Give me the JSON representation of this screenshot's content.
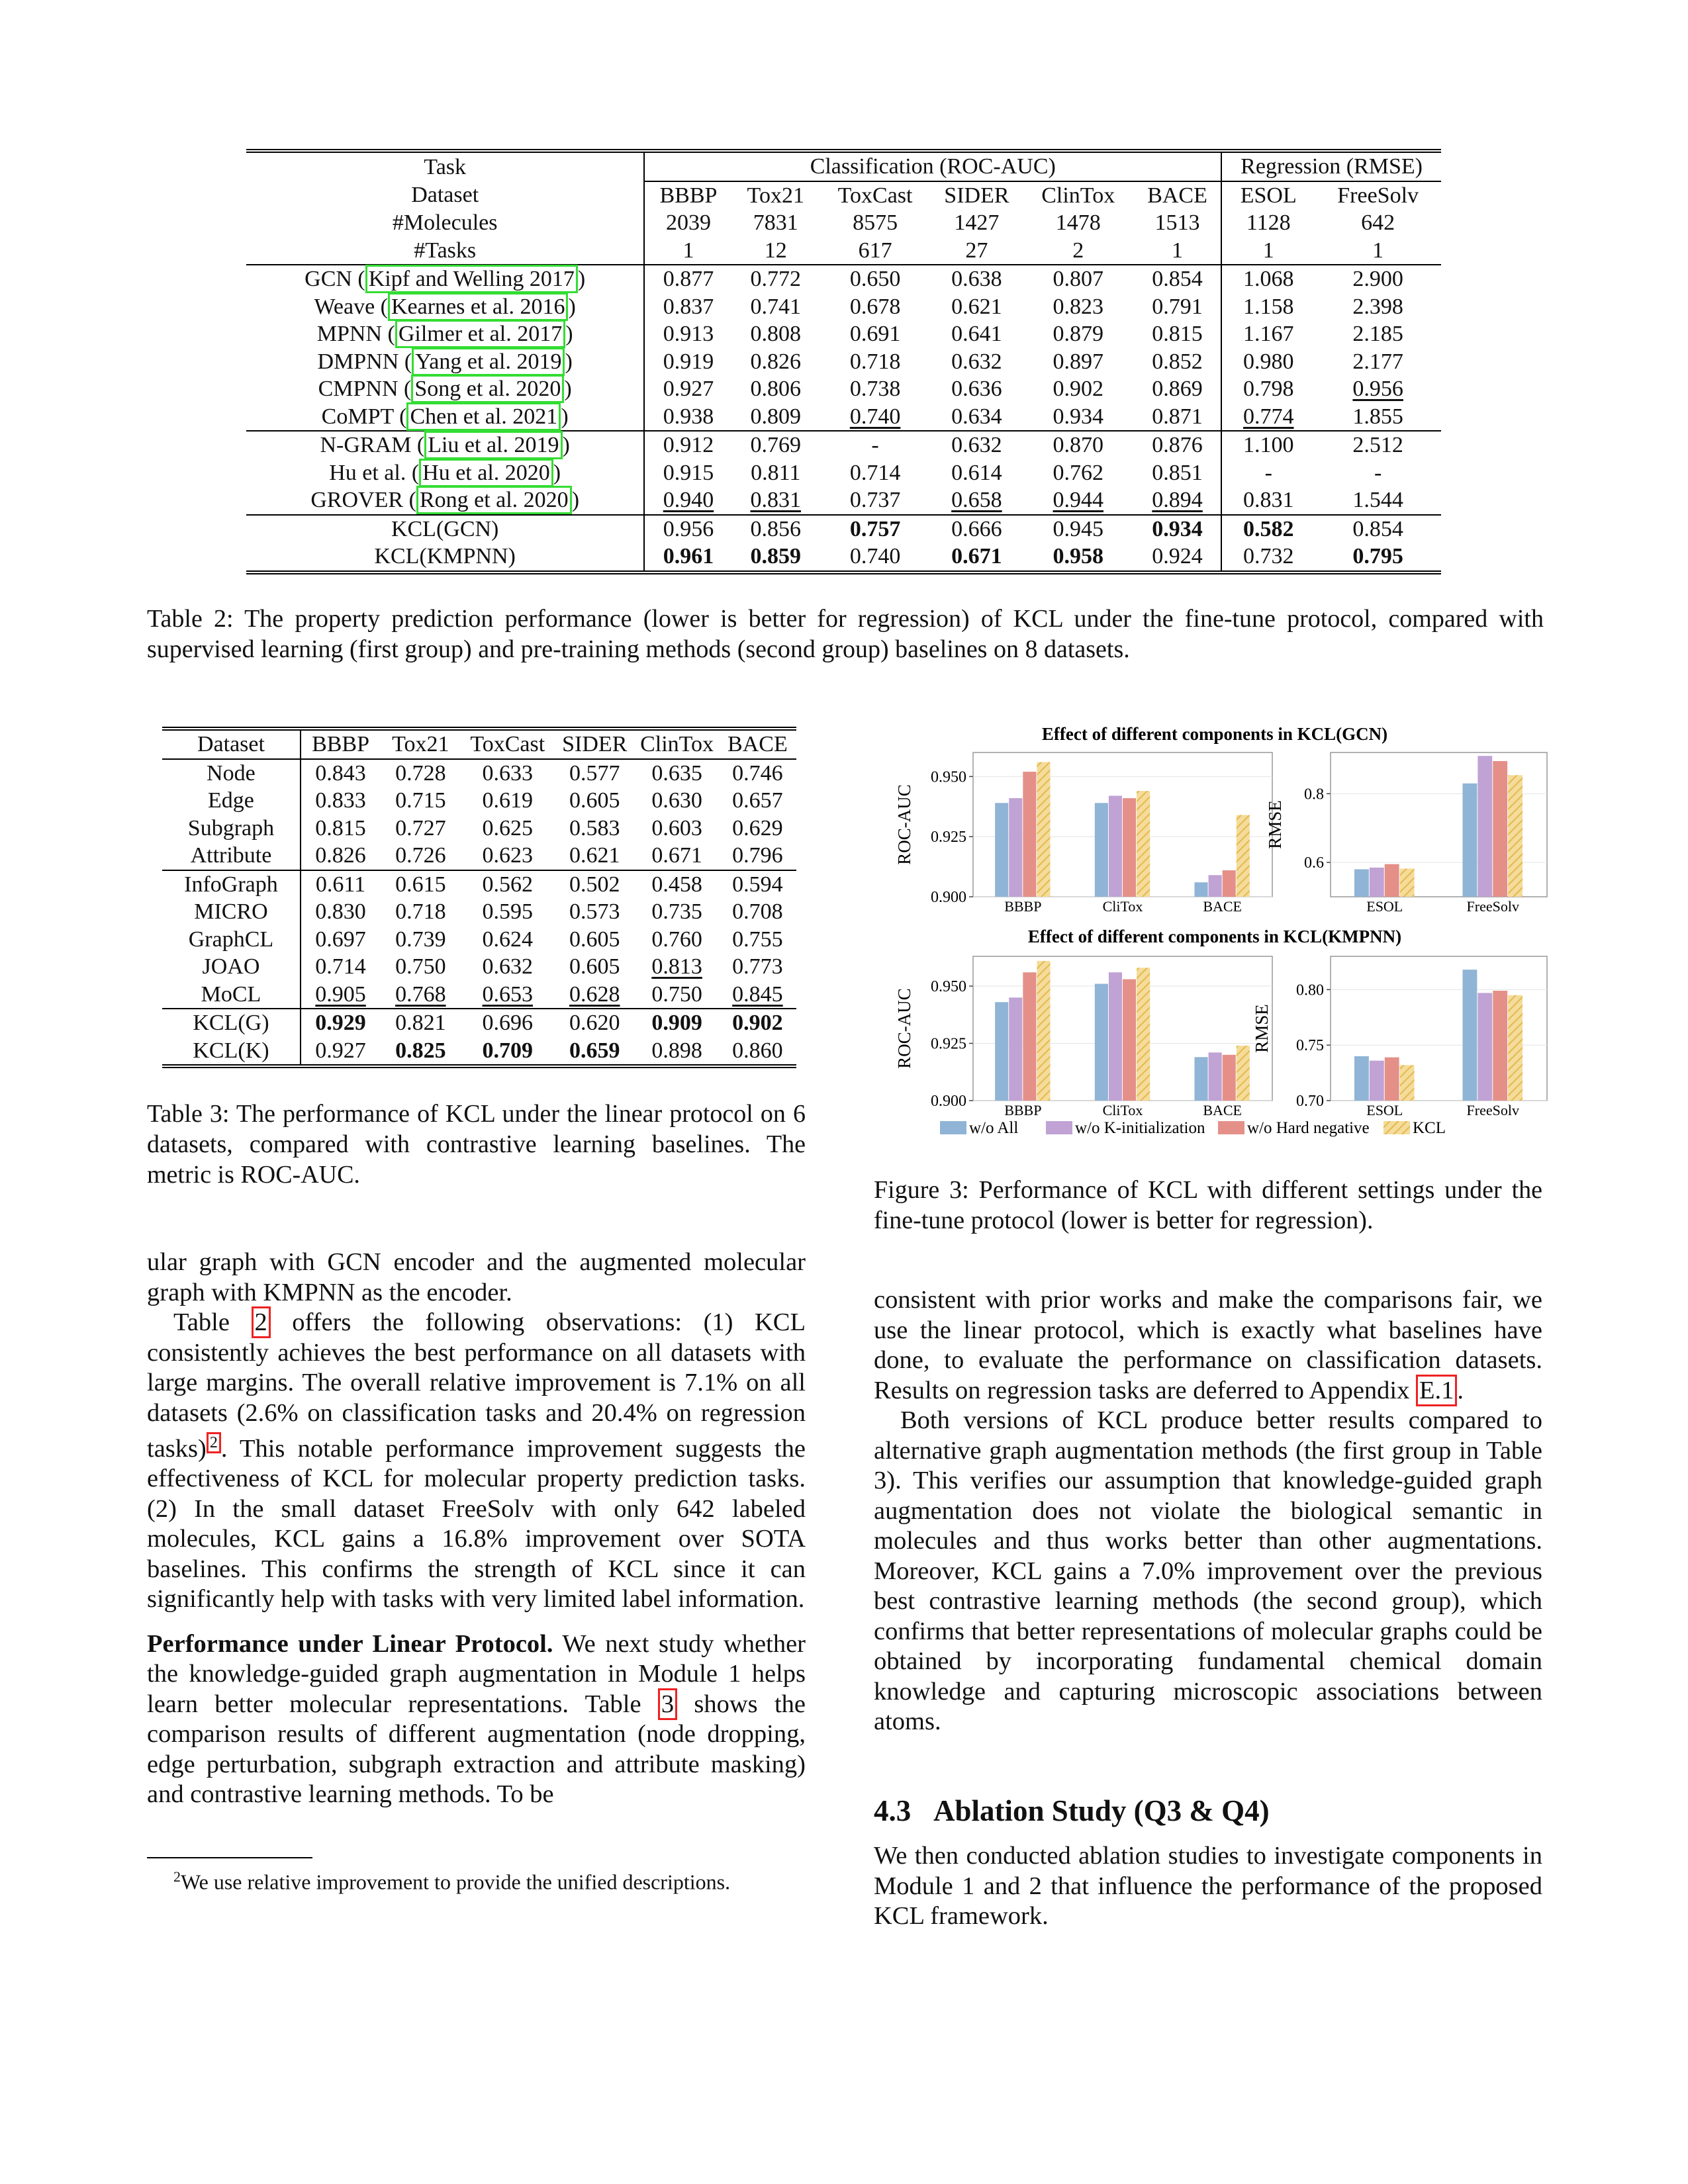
{
  "table2": {
    "header": {
      "task": "Task",
      "classification": "Classification (ROC-AUC)",
      "regression": "Regression (RMSE)",
      "dataset_label": "Dataset",
      "molecules_label": "#Molecules",
      "tasks_label": "#Tasks",
      "datasets": [
        "BBBP",
        "Tox21",
        "ToxCast",
        "SIDER",
        "ClinTox",
        "BACE",
        "ESOL",
        "FreeSolv"
      ],
      "molecules": [
        "2039",
        "7831",
        "8575",
        "1427",
        "1478",
        "1513",
        "1128",
        "642"
      ],
      "tasks": [
        "1",
        "12",
        "617",
        "27",
        "2",
        "1",
        "1",
        "1"
      ]
    },
    "group1": [
      {
        "name": "GCN",
        "cite_author": "Kipf and Welling",
        "cite_year": "2017",
        "vals": [
          "0.877",
          "0.772",
          "0.650",
          "0.638",
          "0.807",
          "0.854",
          "1.068",
          "2.900"
        ]
      },
      {
        "name": "Weave",
        "cite_author": "Kearnes et al.",
        "cite_year": "2016",
        "vals": [
          "0.837",
          "0.741",
          "0.678",
          "0.621",
          "0.823",
          "0.791",
          "1.158",
          "2.398"
        ]
      },
      {
        "name": "MPNN",
        "cite_author": "Gilmer et al.",
        "cite_year": "2017",
        "vals": [
          "0.913",
          "0.808",
          "0.691",
          "0.641",
          "0.879",
          "0.815",
          "1.167",
          "2.185"
        ]
      },
      {
        "name": "DMPNN",
        "cite_author": "Yang et al.",
        "cite_year": "2019",
        "vals": [
          "0.919",
          "0.826",
          "0.718",
          "0.632",
          "0.897",
          "0.852",
          "0.980",
          "2.177"
        ]
      },
      {
        "name": "CMPNN",
        "cite_author": "Song et al.",
        "cite_year": "2020",
        "vals": [
          "0.927",
          "0.806",
          "0.738",
          "0.636",
          "0.902",
          "0.869",
          "0.798",
          "0.956"
        ]
      },
      {
        "name": "CoMPT",
        "cite_author": "Chen et al.",
        "cite_year": "2021",
        "vals": [
          "0.938",
          "0.809",
          "0.740",
          "0.634",
          "0.934",
          "0.871",
          "0.774",
          "1.855"
        ]
      }
    ],
    "group2": [
      {
        "name": "N-GRAM",
        "cite_author": "Liu et al.",
        "cite_year": "2019",
        "vals": [
          "0.912",
          "0.769",
          "-",
          "0.632",
          "0.870",
          "0.876",
          "1.100",
          "2.512"
        ]
      },
      {
        "name": "Hu et al.",
        "cite_author": "Hu et al.",
        "cite_year": "2020",
        "vals": [
          "0.915",
          "0.811",
          "0.714",
          "0.614",
          "0.762",
          "0.851",
          "-",
          "-"
        ]
      },
      {
        "name": "GROVER",
        "cite_author": "Rong et al.",
        "cite_year": "2020",
        "vals": [
          "0.940",
          "0.831",
          "0.737",
          "0.658",
          "0.944",
          "0.894",
          "0.831",
          "1.544"
        ]
      }
    ],
    "group3": [
      {
        "name": "KCL(GCN)",
        "vals": [
          "0.956",
          "0.856",
          "0.757",
          "0.666",
          "0.945",
          "0.934",
          "0.582",
          "0.854"
        ]
      },
      {
        "name": "KCL(KMPNN)",
        "vals": [
          "0.961",
          "0.859",
          "0.740",
          "0.671",
          "0.958",
          "0.924",
          "0.732",
          "0.795"
        ]
      }
    ],
    "caption": "Table 2: The property prediction performance (lower is better for regression) of KCL under the fine-tune protocol, compared with supervised learning (first group) and pre-training methods (second group) baselines on 8 datasets."
  },
  "table3": {
    "header": [
      "Dataset",
      "BBBP",
      "Tox21",
      "ToxCast",
      "SIDER",
      "ClinTox",
      "BACE"
    ],
    "group1": [
      {
        "name": "Node",
        "vals": [
          "0.843",
          "0.728",
          "0.633",
          "0.577",
          "0.635",
          "0.746"
        ]
      },
      {
        "name": "Edge",
        "vals": [
          "0.833",
          "0.715",
          "0.619",
          "0.605",
          "0.630",
          "0.657"
        ]
      },
      {
        "name": "Subgraph",
        "vals": [
          "0.815",
          "0.727",
          "0.625",
          "0.583",
          "0.603",
          "0.629"
        ]
      },
      {
        "name": "Attribute",
        "vals": [
          "0.826",
          "0.726",
          "0.623",
          "0.621",
          "0.671",
          "0.796"
        ]
      }
    ],
    "group2": [
      {
        "name": "InfoGraph",
        "vals": [
          "0.611",
          "0.615",
          "0.562",
          "0.502",
          "0.458",
          "0.594"
        ]
      },
      {
        "name": "MICRO",
        "vals": [
          "0.830",
          "0.718",
          "0.595",
          "0.573",
          "0.735",
          "0.708"
        ]
      },
      {
        "name": "GraphCL",
        "vals": [
          "0.697",
          "0.739",
          "0.624",
          "0.605",
          "0.760",
          "0.755"
        ]
      },
      {
        "name": "JOAO",
        "vals": [
          "0.714",
          "0.750",
          "0.632",
          "0.605",
          "0.813",
          "0.773"
        ]
      },
      {
        "name": "MoCL",
        "vals": [
          "0.905",
          "0.768",
          "0.653",
          "0.628",
          "0.750",
          "0.845"
        ]
      }
    ],
    "group3": [
      {
        "name": "KCL(G)",
        "vals": [
          "0.929",
          "0.821",
          "0.696",
          "0.620",
          "0.909",
          "0.902"
        ]
      },
      {
        "name": "KCL(K)",
        "vals": [
          "0.927",
          "0.825",
          "0.709",
          "0.659",
          "0.898",
          "0.860"
        ]
      }
    ],
    "caption": "Table 3: The performance of KCL under the linear protocol on 6 datasets, compared with contrastive learning baselines. The metric is ROC-AUC."
  },
  "figure3": {
    "title_gcn": "Effect of different components in KCL(GCN)",
    "title_kmpnn": "Effect of different components in KCL(KMPNN)",
    "caption": "Figure 3: Performance of KCL with different settings under the fine-tune protocol (lower is better for regression).",
    "legend": [
      "w/o All",
      "w/o K-initialization",
      "w/o Hard negative",
      "KCL"
    ]
  },
  "chart_data": [
    {
      "type": "bar",
      "title": "Effect of different components in KCL(GCN)",
      "ylabel": "ROC-AUC",
      "ylim": [
        0.9,
        0.96
      ],
      "yticks": [
        "0.900",
        "0.925",
        "0.950"
      ],
      "categories": [
        "BBBP",
        "CliTox",
        "BACE"
      ],
      "series": [
        {
          "name": "w/o All",
          "values": [
            0.939,
            0.939,
            0.906
          ]
        },
        {
          "name": "w/o K-initialization",
          "values": [
            0.941,
            0.942,
            0.909
          ]
        },
        {
          "name": "w/o Hard negative",
          "values": [
            0.952,
            0.941,
            0.911
          ]
        },
        {
          "name": "KCL",
          "values": [
            0.956,
            0.944,
            0.934
          ]
        }
      ],
      "colors": [
        "#8fb4d6",
        "#c0a2d4",
        "#e49088",
        "#f0cf7a"
      ]
    },
    {
      "type": "bar",
      "ylabel": "RMSE",
      "ylim": [
        0.5,
        0.92
      ],
      "yticks": [
        "0.6",
        "0.8"
      ],
      "categories": [
        "ESOL",
        "FreeSolv"
      ],
      "series": [
        {
          "name": "w/o All",
          "values": [
            0.58,
            0.83
          ]
        },
        {
          "name": "w/o K-initialization",
          "values": [
            0.585,
            0.91
          ]
        },
        {
          "name": "w/o Hard negative",
          "values": [
            0.595,
            0.895
          ]
        },
        {
          "name": "KCL",
          "values": [
            0.582,
            0.854
          ]
        }
      ],
      "colors": [
        "#8fb4d6",
        "#c0a2d4",
        "#e49088",
        "#f0cf7a"
      ]
    },
    {
      "type": "bar",
      "title": "Effect of different components in KCL(KMPNN)",
      "ylabel": "ROC-AUC",
      "ylim": [
        0.9,
        0.963
      ],
      "yticks": [
        "0.900",
        "0.925",
        "0.950"
      ],
      "categories": [
        "BBBP",
        "CliTox",
        "BACE"
      ],
      "series": [
        {
          "name": "w/o All",
          "values": [
            0.943,
            0.951,
            0.919
          ]
        },
        {
          "name": "w/o K-initialization",
          "values": [
            0.945,
            0.956,
            0.921
          ]
        },
        {
          "name": "w/o Hard negative",
          "values": [
            0.956,
            0.953,
            0.92
          ]
        },
        {
          "name": "KCL",
          "values": [
            0.961,
            0.958,
            0.924
          ]
        }
      ],
      "colors": [
        "#8fb4d6",
        "#c0a2d4",
        "#e49088",
        "#f0cf7a"
      ]
    },
    {
      "type": "bar",
      "ylabel": "RMSE",
      "ylim": [
        0.7,
        0.83
      ],
      "yticks": [
        "0.70",
        "0.75",
        "0.80"
      ],
      "categories": [
        "ESOL",
        "FreeSolv"
      ],
      "series": [
        {
          "name": "w/o All",
          "values": [
            0.74,
            0.818
          ]
        },
        {
          "name": "w/o K-initialization",
          "values": [
            0.736,
            0.797
          ]
        },
        {
          "name": "w/o Hard negative",
          "values": [
            0.739,
            0.799
          ]
        },
        {
          "name": "KCL",
          "values": [
            0.732,
            0.795
          ]
        }
      ],
      "colors": [
        "#8fb4d6",
        "#c0a2d4",
        "#e49088",
        "#f0cf7a"
      ]
    }
  ],
  "left_col": {
    "p1": "ular graph with GCN encoder and the augmented molecular graph with KMPNN as the encoder.",
    "p2_pre": "Table ",
    "p2_ref": "2",
    "p2_a": " offers the following observations: (1) KCL consistently achieves the best performance on all datasets with large margins. The overall relative improvement is 7.1% on all datasets (2.6% on classification tasks and 20.4% on regression tasks)",
    "p2_fn": "2",
    "p2_b": ". This notable performance improvement suggests the effectiveness of KCL for molecular property prediction tasks. (2) In the small dataset FreeSolv with only 642 labeled molecules, KCL gains a 16.8% improvement over SOTA baselines. This confirms the strength of KCL since it can significantly help with tasks with very limited label information.",
    "p3_head": "Performance under Linear Protocol.",
    "p3_a": " We next study whether the knowledge-guided graph augmentation in Module 1 helps learn better molecular representations. Table ",
    "p3_ref": "3",
    "p3_b": " shows the comparison results of different augmentation (node dropping, edge perturbation, subgraph extraction and attribute masking) and contrastive learning methods. To be",
    "footnote_num": "2",
    "footnote": "We use relative improvement to provide the unified descriptions."
  },
  "right_col": {
    "p1_a": "consistent with prior works and make the comparisons fair, we use the linear protocol, which is exactly what baselines have done, to evaluate the performance on classification datasets. Results on regression tasks are deferred to Appendix ",
    "p1_ref": "E.1",
    "p1_b": ".",
    "p2": "Both versions of KCL produce better results compared to alternative graph augmentation methods (the first group in Table 3). This verifies our assumption that knowledge-guided graph augmentation does not violate the biological semantic in molecules and thus works better than other augmentations. Moreover, KCL gains a 7.0% improvement over the previous best contrastive learning methods (the second group), which confirms that better representations of molecular graphs could be obtained by incorporating fundamental chemical domain knowledge and capturing microscopic associations between atoms.",
    "section_num": "4.3",
    "section_title": "Ablation Study (Q3 & Q4)",
    "p3": "We then conducted ablation studies to investigate components in Module 1 and 2 that influence the performance of the proposed KCL framework."
  }
}
